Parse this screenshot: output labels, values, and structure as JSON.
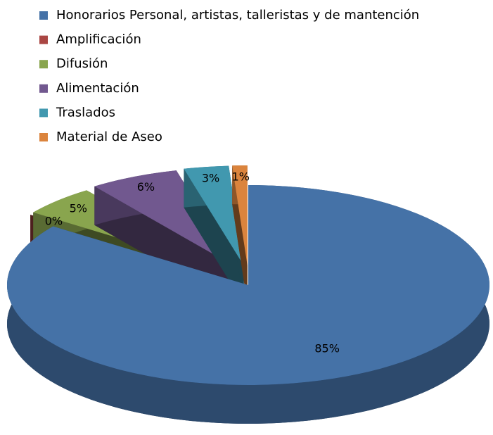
{
  "chart_data": {
    "type": "pie",
    "categories": [
      "Honorarios Personal, artistas, talleristas y de mantención",
      "Amplificación",
      "Difusión",
      "Alimentación",
      "Traslados",
      "Material de Aseo"
    ],
    "values": [
      85,
      0,
      5,
      6,
      3,
      1
    ],
    "value_labels": [
      "85%",
      "0%",
      "5%",
      "6%",
      "3%",
      "1%"
    ],
    "colors": [
      "#4572a7",
      "#aa4643",
      "#89a54e",
      "#71588f",
      "#4198af",
      "#db843d"
    ],
    "legend": "top"
  }
}
